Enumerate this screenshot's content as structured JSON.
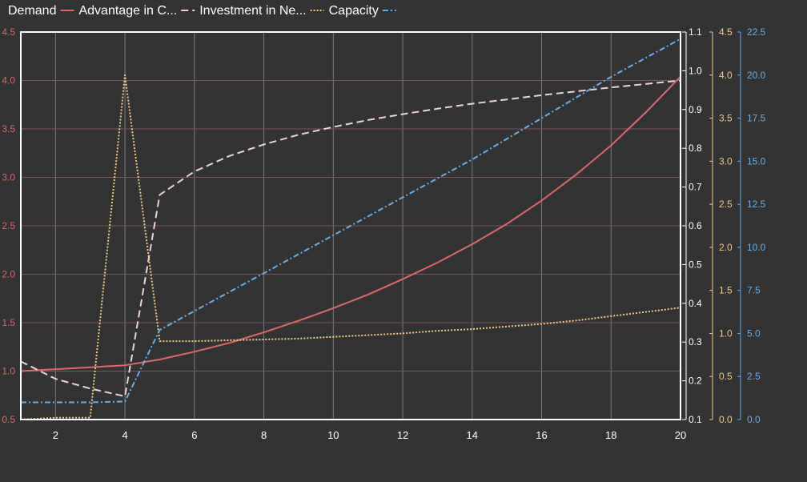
{
  "chart_data": {
    "type": "line",
    "title": "",
    "xlabel": "",
    "legend": {
      "position": "top-left"
    },
    "background": "#333333",
    "plot_border_color": "#ffffff",
    "grid": true,
    "x": [
      1,
      2,
      3,
      4,
      5,
      6,
      7,
      8,
      9,
      10,
      11,
      12,
      13,
      14,
      15,
      16,
      17,
      18,
      19,
      20
    ],
    "x_axis": {
      "min": 1,
      "max": 20,
      "ticks": [
        2,
        4,
        6,
        8,
        10,
        12,
        14,
        16,
        18,
        20
      ],
      "color": "#ffffff"
    },
    "axes": [
      {
        "id": "left",
        "position": "left",
        "min": 0.5,
        "max": 4.5,
        "ticks": [
          "0.5",
          "1.0",
          "1.5",
          "2.0",
          "2.5",
          "3.0",
          "3.5",
          "4.0",
          "4.5"
        ],
        "color": "#d9686b"
      },
      {
        "id": "right1",
        "position": "right",
        "min": 0.1,
        "max": 1.1,
        "ticks": [
          "0.1",
          "0.2",
          "0.3",
          "0.4",
          "0.5",
          "0.6",
          "0.7",
          "0.8",
          "0.9",
          "1.0",
          "1.1"
        ],
        "color": "#ffffff"
      },
      {
        "id": "right2",
        "position": "right",
        "min": 0,
        "max": 4.5,
        "ticks": [
          "0.0",
          "0.5",
          "1.0",
          "1.5",
          "2.0",
          "2.5",
          "3.0",
          "3.5",
          "4.0",
          "4.5"
        ],
        "color": "#f2c98a"
      },
      {
        "id": "right3",
        "position": "right",
        "min": 0,
        "max": 22.5,
        "ticks": [
          "0.0",
          "2.5",
          "5.0",
          "7.5",
          "10.0",
          "12.5",
          "15.0",
          "17.5",
          "20.0",
          "22.5"
        ],
        "color": "#6aaee8"
      }
    ],
    "series": [
      {
        "name": "Demand",
        "axis": "left",
        "color": "#d9686b",
        "dash": "",
        "values": [
          1.0,
          1.02,
          1.04,
          1.06,
          1.12,
          1.2,
          1.29,
          1.4,
          1.52,
          1.65,
          1.79,
          1.95,
          2.12,
          2.31,
          2.52,
          2.76,
          3.03,
          3.33,
          3.67,
          4.04
        ]
      },
      {
        "name": "Advantage in C...",
        "axis": "right1",
        "color": "#ebd3d6",
        "dash": "9,5",
        "values": [
          0.25,
          0.205,
          0.18,
          0.16,
          0.68,
          0.74,
          0.78,
          0.81,
          0.835,
          0.855,
          0.873,
          0.888,
          0.902,
          0.915,
          0.926,
          0.937,
          0.947,
          0.957,
          0.966,
          0.975
        ]
      },
      {
        "name": "Investment in Ne...",
        "axis": "right2",
        "color": "#f2c98a",
        "dash": "2,2",
        "values": [
          0.0,
          0.02,
          0.02,
          4.0,
          0.91,
          0.91,
          0.92,
          0.93,
          0.94,
          0.96,
          0.98,
          1.0,
          1.03,
          1.05,
          1.08,
          1.11,
          1.15,
          1.2,
          1.25,
          1.3
        ]
      },
      {
        "name": "Capacity",
        "axis": "right3",
        "color": "#6aaee8",
        "dash": "7,3,2,3",
        "values": [
          1.0,
          1.0,
          1.0,
          1.05,
          5.2,
          6.3,
          7.4,
          8.5,
          9.6,
          10.7,
          11.8,
          12.9,
          14.0,
          15.1,
          16.3,
          17.5,
          18.7,
          19.9,
          21.0,
          22.1
        ]
      }
    ]
  }
}
